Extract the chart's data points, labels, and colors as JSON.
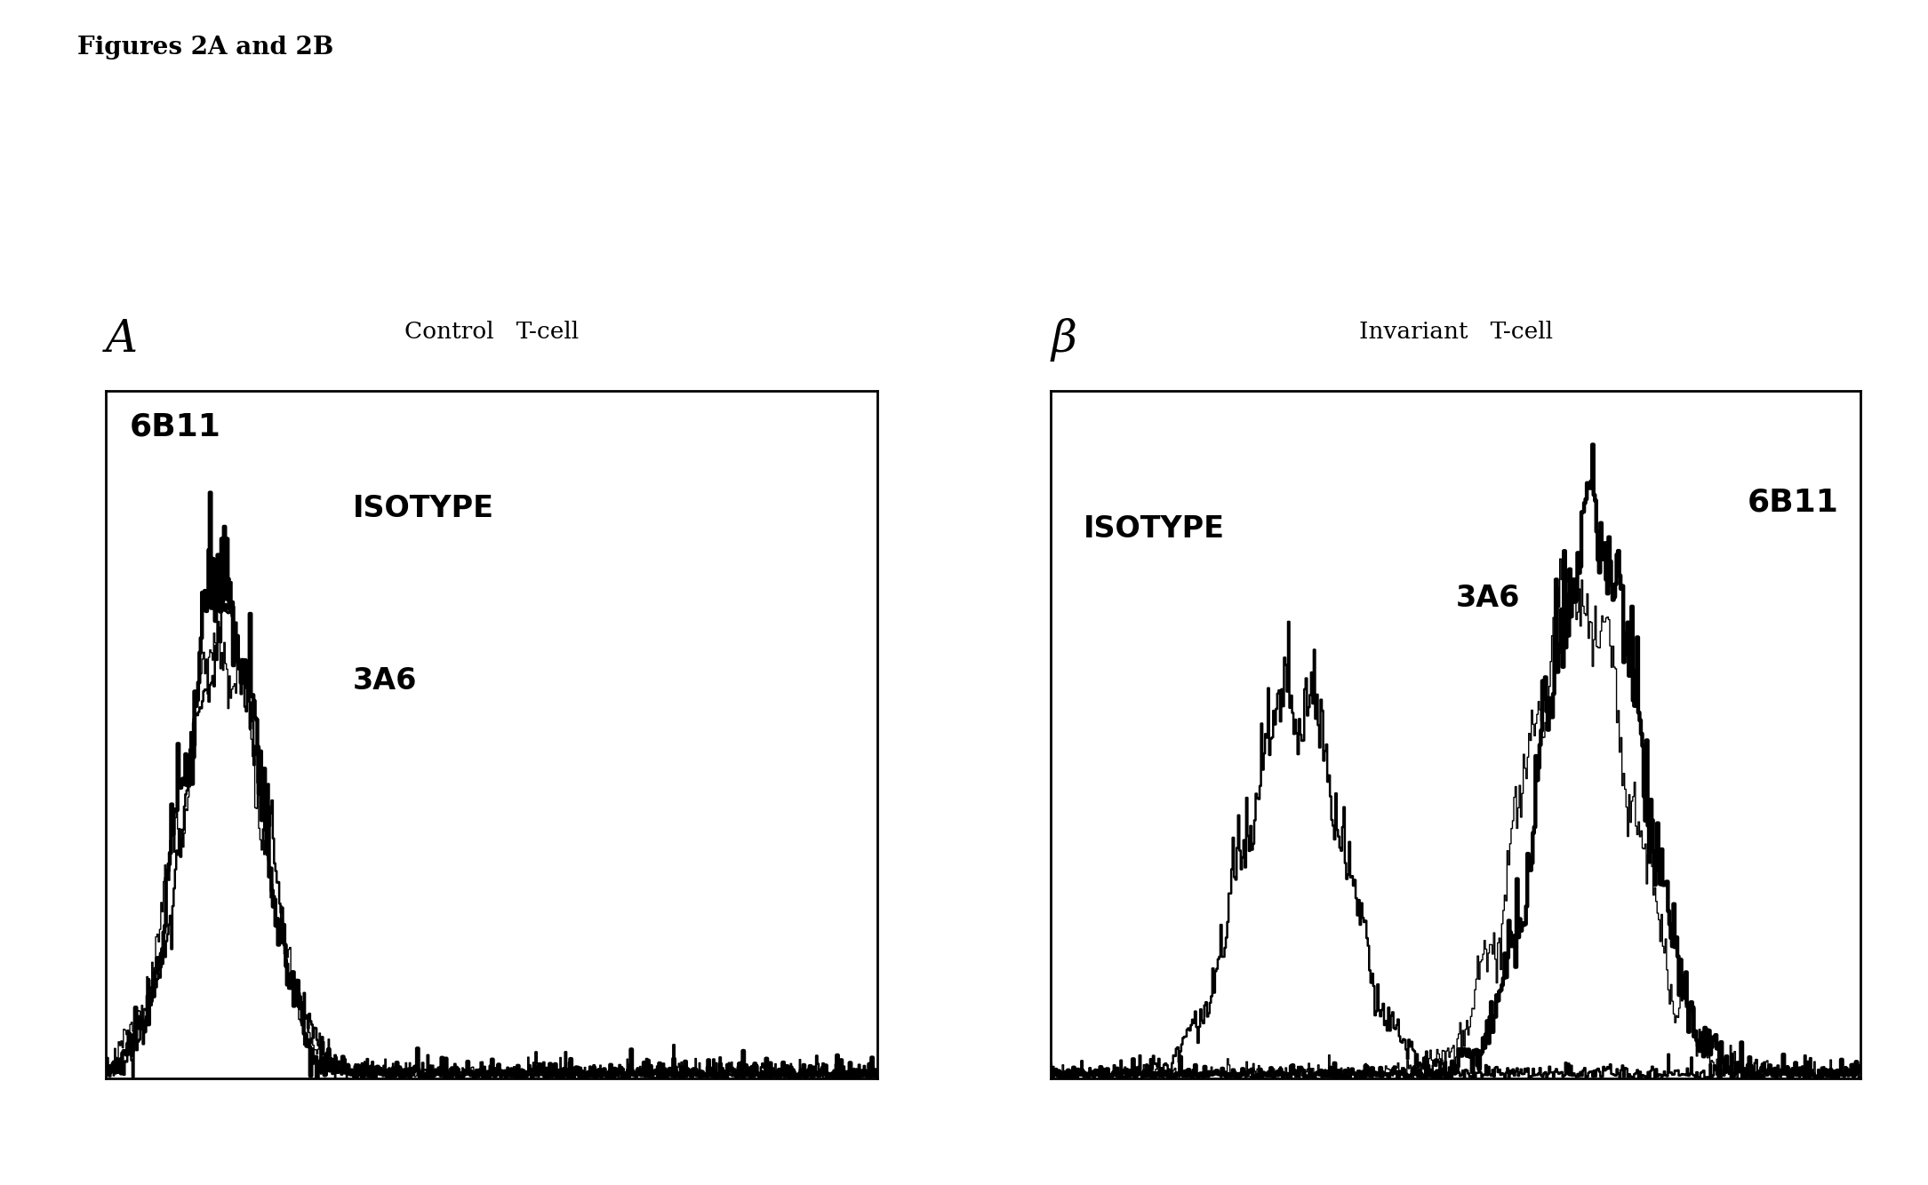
{
  "title": "Figures 2A and 2B",
  "panel_A_title": "Control   T-cell",
  "panel_B_title": "Invariant   T-cell",
  "panel_A_label": "A",
  "panel_B_label": "β",
  "background_color": "#ffffff",
  "figsize": [
    21.69,
    13.34
  ],
  "dpi": 100,
  "panel_A": {
    "label_6B11": "6B11",
    "label_isotype": "ISOTYPE",
    "label_3a6": "3A6"
  },
  "panel_B": {
    "label_6B11": "6B11",
    "label_isotype": "ISOTYPE",
    "label_3a6": "3A6"
  }
}
